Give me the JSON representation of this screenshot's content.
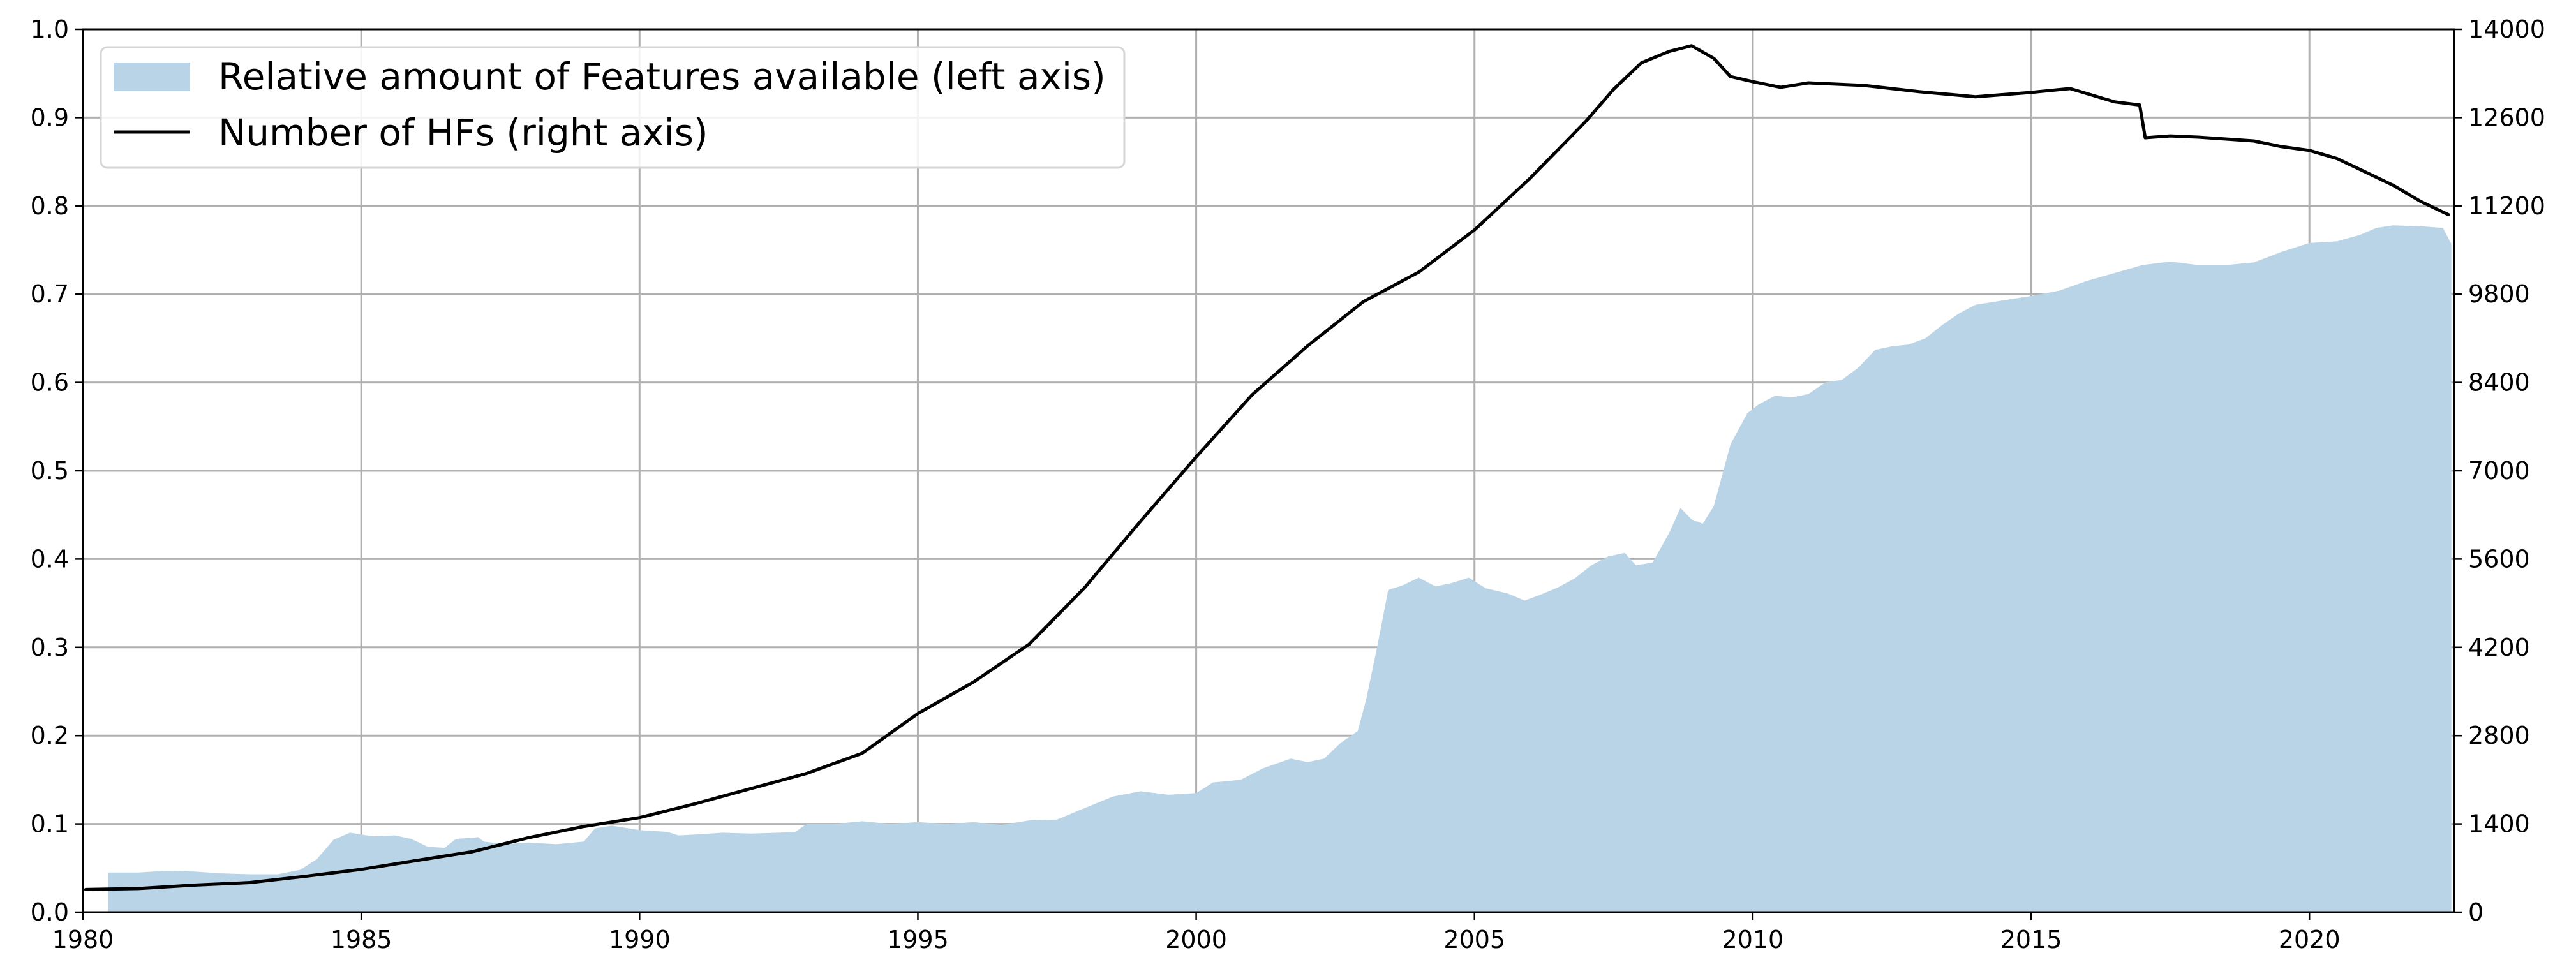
{
  "chart_data": {
    "type": "area",
    "title": "",
    "xlabel": "",
    "ylabel": "",
    "y2label": "",
    "grid": true,
    "legend_placement": "top-left",
    "xlim": [
      1980,
      2022.6
    ],
    "ylim": [
      0,
      1.0
    ],
    "y2lim": [
      0,
      14000
    ],
    "x_ticks": [
      1980,
      1985,
      1990,
      1995,
      2000,
      2005,
      2010,
      2015,
      2020
    ],
    "y_ticks": [
      "0.0",
      "0.1",
      "0.2",
      "0.3",
      "0.4",
      "0.5",
      "0.6",
      "0.7",
      "0.8",
      "0.9",
      "1.0"
    ],
    "y2_ticks": [
      "0",
      "1400",
      "2800",
      "4200",
      "5600",
      "7000",
      "8400",
      "9800",
      "11200",
      "12600",
      "14000"
    ],
    "series": [
      {
        "name": "Relative amount of Features available (left axis)",
        "kind": "area",
        "axis": "left",
        "color": "#bad4e7",
        "points": [
          [
            1980.45,
            0.045
          ],
          [
            1981.0,
            0.045
          ],
          [
            1981.5,
            0.047
          ],
          [
            1982.0,
            0.046
          ],
          [
            1982.5,
            0.044
          ],
          [
            1983.0,
            0.043
          ],
          [
            1983.5,
            0.043
          ],
          [
            1983.9,
            0.048
          ],
          [
            1984.2,
            0.06
          ],
          [
            1984.5,
            0.082
          ],
          [
            1984.8,
            0.09
          ],
          [
            1985.2,
            0.086
          ],
          [
            1985.6,
            0.087
          ],
          [
            1985.9,
            0.083
          ],
          [
            1986.2,
            0.074
          ],
          [
            1986.5,
            0.073
          ],
          [
            1986.7,
            0.083
          ],
          [
            1987.1,
            0.085
          ],
          [
            1987.2,
            0.08
          ],
          [
            1987.6,
            0.077
          ],
          [
            1988.0,
            0.079
          ],
          [
            1988.5,
            0.077
          ],
          [
            1989.0,
            0.08
          ],
          [
            1989.2,
            0.095
          ],
          [
            1989.5,
            0.098
          ],
          [
            1990.0,
            0.093
          ],
          [
            1990.5,
            0.091
          ],
          [
            1990.7,
            0.087
          ],
          [
            1991.0,
            0.088
          ],
          [
            1991.5,
            0.09
          ],
          [
            1992.0,
            0.089
          ],
          [
            1992.5,
            0.09
          ],
          [
            1992.8,
            0.091
          ],
          [
            1993.0,
            0.1
          ],
          [
            1993.5,
            0.1
          ],
          [
            1994.0,
            0.103
          ],
          [
            1994.5,
            0.1
          ],
          [
            1995.0,
            0.102
          ],
          [
            1995.5,
            0.1
          ],
          [
            1996.0,
            0.102
          ],
          [
            1996.5,
            0.099
          ],
          [
            1997.0,
            0.104
          ],
          [
            1997.5,
            0.105
          ],
          [
            1998.0,
            0.118
          ],
          [
            1998.5,
            0.131
          ],
          [
            1999.0,
            0.137
          ],
          [
            1999.5,
            0.133
          ],
          [
            2000.0,
            0.135
          ],
          [
            2000.3,
            0.147
          ],
          [
            2000.8,
            0.15
          ],
          [
            2001.2,
            0.163
          ],
          [
            2001.7,
            0.174
          ],
          [
            2002.0,
            0.17
          ],
          [
            2002.3,
            0.174
          ],
          [
            2002.6,
            0.192
          ],
          [
            2002.9,
            0.205
          ],
          [
            2003.05,
            0.24
          ],
          [
            2003.25,
            0.3
          ],
          [
            2003.45,
            0.365
          ],
          [
            2003.7,
            0.37
          ],
          [
            2004.0,
            0.379
          ],
          [
            2004.3,
            0.369
          ],
          [
            2004.6,
            0.373
          ],
          [
            2004.9,
            0.379
          ],
          [
            2005.2,
            0.367
          ],
          [
            2005.6,
            0.361
          ],
          [
            2005.9,
            0.353
          ],
          [
            2006.2,
            0.36
          ],
          [
            2006.5,
            0.368
          ],
          [
            2006.8,
            0.378
          ],
          [
            2007.1,
            0.393
          ],
          [
            2007.4,
            0.403
          ],
          [
            2007.7,
            0.407
          ],
          [
            2007.9,
            0.393
          ],
          [
            2008.2,
            0.396
          ],
          [
            2008.5,
            0.43
          ],
          [
            2008.7,
            0.458
          ],
          [
            2008.9,
            0.445
          ],
          [
            2009.1,
            0.44
          ],
          [
            2009.3,
            0.46
          ],
          [
            2009.6,
            0.53
          ],
          [
            2009.9,
            0.565
          ],
          [
            2010.1,
            0.575
          ],
          [
            2010.4,
            0.585
          ],
          [
            2010.7,
            0.583
          ],
          [
            2011.0,
            0.587
          ],
          [
            2011.3,
            0.6
          ],
          [
            2011.6,
            0.603
          ],
          [
            2011.9,
            0.617
          ],
          [
            2012.2,
            0.637
          ],
          [
            2012.5,
            0.641
          ],
          [
            2012.8,
            0.643
          ],
          [
            2013.1,
            0.65
          ],
          [
            2013.4,
            0.665
          ],
          [
            2013.7,
            0.678
          ],
          [
            2014.0,
            0.688
          ],
          [
            2014.5,
            0.693
          ],
          [
            2015.0,
            0.698
          ],
          [
            2015.5,
            0.704
          ],
          [
            2016.0,
            0.715
          ],
          [
            2016.5,
            0.724
          ],
          [
            2017.0,
            0.733
          ],
          [
            2017.5,
            0.737
          ],
          [
            2018.0,
            0.733
          ],
          [
            2018.5,
            0.733
          ],
          [
            2019.0,
            0.736
          ],
          [
            2019.5,
            0.748
          ],
          [
            2020.0,
            0.758
          ],
          [
            2020.5,
            0.76
          ],
          [
            2020.9,
            0.767
          ],
          [
            2021.2,
            0.775
          ],
          [
            2021.5,
            0.778
          ],
          [
            2022.0,
            0.777
          ],
          [
            2022.4,
            0.775
          ],
          [
            2022.55,
            0.757
          ]
        ]
      },
      {
        "name": "Number of HFs (right axis)",
        "kind": "line",
        "axis": "right",
        "color": "#000000",
        "points": [
          [
            1980.05,
            360
          ],
          [
            1981.0,
            375
          ],
          [
            1982.0,
            430
          ],
          [
            1983.0,
            470
          ],
          [
            1984.0,
            570
          ],
          [
            1985.0,
            680
          ],
          [
            1986.0,
            820
          ],
          [
            1987.0,
            960
          ],
          [
            1988.0,
            1180
          ],
          [
            1989.0,
            1360
          ],
          [
            1990.0,
            1500
          ],
          [
            1991.0,
            1720
          ],
          [
            1992.0,
            1960
          ],
          [
            1993.0,
            2200
          ],
          [
            1994.0,
            2520
          ],
          [
            1995.0,
            3150
          ],
          [
            1996.0,
            3650
          ],
          [
            1997.0,
            4250
          ],
          [
            1998.0,
            5150
          ],
          [
            1999.0,
            6200
          ],
          [
            2000.0,
            7220
          ],
          [
            2001.0,
            8200
          ],
          [
            2002.0,
            8980
          ],
          [
            2003.0,
            9680
          ],
          [
            2004.0,
            10150
          ],
          [
            2005.0,
            10820
          ],
          [
            2006.0,
            11640
          ],
          [
            2007.0,
            12540
          ],
          [
            2007.5,
            13050
          ],
          [
            2008.0,
            13470
          ],
          [
            2008.5,
            13650
          ],
          [
            2008.9,
            13740
          ],
          [
            2009.3,
            13540
          ],
          [
            2009.6,
            13250
          ],
          [
            2010.0,
            13170
          ],
          [
            2010.5,
            13080
          ],
          [
            2011.0,
            13150
          ],
          [
            2012.0,
            13110
          ],
          [
            2013.0,
            13010
          ],
          [
            2013.5,
            12970
          ],
          [
            2014.0,
            12930
          ],
          [
            2015.0,
            13000
          ],
          [
            2015.7,
            13060
          ],
          [
            2016.5,
            12850
          ],
          [
            2016.95,
            12800
          ],
          [
            2017.05,
            12280
          ],
          [
            2017.5,
            12310
          ],
          [
            2018.0,
            12290
          ],
          [
            2019.0,
            12230
          ],
          [
            2019.5,
            12140
          ],
          [
            2020.0,
            12080
          ],
          [
            2020.5,
            11950
          ],
          [
            2021.0,
            11740
          ],
          [
            2021.5,
            11530
          ],
          [
            2022.0,
            11270
          ],
          [
            2022.5,
            11060
          ]
        ]
      }
    ]
  }
}
